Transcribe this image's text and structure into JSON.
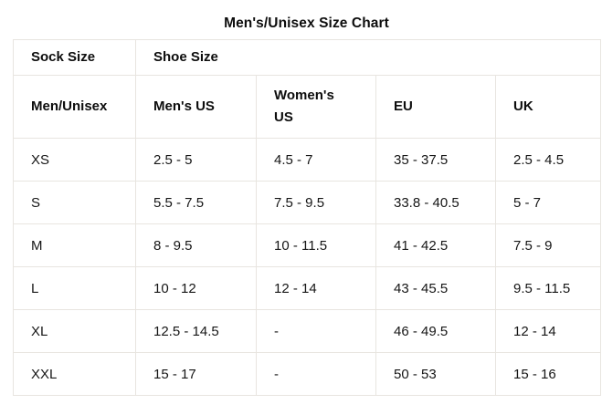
{
  "page": {
    "title": "Men's/Unisex Size Chart"
  },
  "colors": {
    "background": "#ffffff",
    "border": "#e8e5e0",
    "text": "#111111"
  },
  "chart_data": {
    "type": "table",
    "title": "Men's/Unisex Size Chart",
    "group_headers": [
      {
        "label": "Sock Size",
        "span": 1
      },
      {
        "label": "Shoe Size",
        "span": 4
      }
    ],
    "columns": [
      "Men/Unisex",
      "Men's US",
      "Women's\nUS",
      "EU",
      "UK"
    ],
    "rows": [
      [
        "XS",
        "2.5 - 5",
        "4.5 - 7",
        "35 - 37.5",
        "2.5 - 4.5"
      ],
      [
        "S",
        "5.5 - 7.5",
        "7.5 - 9.5",
        "33.8 - 40.5",
        "5 - 7"
      ],
      [
        "M",
        "8 - 9.5",
        "10 - 11.5",
        "41 - 42.5",
        "7.5 - 9"
      ],
      [
        "L",
        "10 - 12",
        "12 - 14",
        "43 - 45.5",
        "9.5 - 11.5"
      ],
      [
        "XL",
        "12.5 - 14.5",
        "-",
        "46 - 49.5",
        "12 - 14"
      ],
      [
        "XXL",
        "15 - 17",
        "-",
        "50 - 53",
        "15 - 16"
      ]
    ],
    "layout": {
      "grid": true,
      "header_rows": 2,
      "data_rows": 6,
      "num_columns": 5
    }
  }
}
